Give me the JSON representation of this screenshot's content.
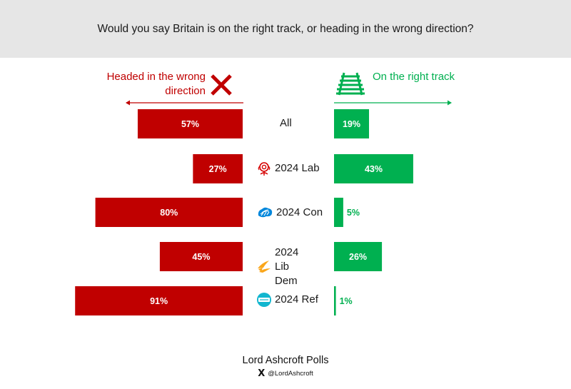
{
  "header": {
    "question": "Would you say Britain is on the right track, or heading in the wrong direction?"
  },
  "legend": {
    "wrong_label": "Headed in the wrong direction",
    "wrong_color": "#c00000",
    "right_label": "On the right track",
    "right_color": "#00b050",
    "wrong_icon": "x-cross-icon",
    "right_icon": "railway-track-icon"
  },
  "chart_data": {
    "type": "bar",
    "orientation": "horizontal-diverging",
    "categories": [
      "All",
      "2024 Lab",
      "2024 Con",
      "2024 Lib Dem",
      "2024 Ref"
    ],
    "category_icons": [
      null,
      "labour-rose-icon",
      "conservative-tree-icon",
      "libdem-bird-icon",
      "reform-logo-icon"
    ],
    "series": [
      {
        "name": "Headed in the wrong direction",
        "color": "#c00000",
        "values": [
          57,
          27,
          80,
          45,
          91
        ]
      },
      {
        "name": "On the right track",
        "color": "#00b050",
        "values": [
          19,
          43,
          5,
          26,
          1
        ]
      }
    ],
    "value_suffix": "%",
    "xlim": [
      0,
      100
    ]
  },
  "footer": {
    "brand": "Lord Ashcroft Polls",
    "handle": "@LordAshcroft",
    "x_logo": "X"
  }
}
